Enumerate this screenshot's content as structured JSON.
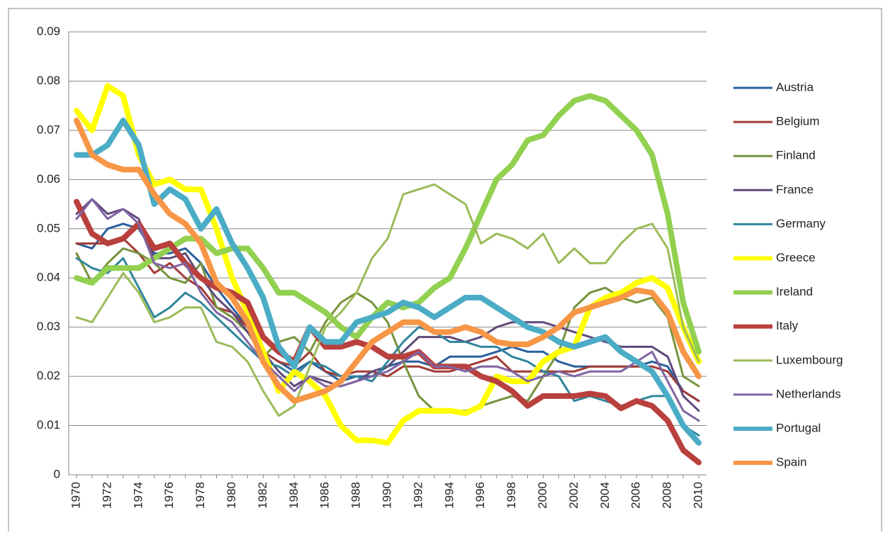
{
  "chart_data": {
    "type": "line",
    "categories": [
      "1970",
      null,
      "1972",
      null,
      "1974",
      null,
      "1976",
      null,
      "1978",
      null,
      "1980",
      null,
      "1982",
      null,
      "1984",
      null,
      "1986",
      null,
      "1988",
      null,
      "1990",
      null,
      "1992",
      null,
      "1994",
      null,
      "1996",
      null,
      "1998",
      null,
      "2000",
      null,
      "2002",
      null,
      "2004",
      null,
      "2006",
      null,
      "2008",
      null,
      "2010"
    ],
    "ylim": [
      0,
      0.09
    ],
    "yticks": [
      0,
      0.01,
      0.02,
      0.03,
      0.04,
      0.05,
      0.06,
      0.07,
      0.08,
      0.09
    ],
    "grid": true,
    "legend": "right",
    "series": [
      {
        "name": "Austria",
        "color": "#2a5f9e",
        "line_width": 3,
        "values": [
          0.047,
          0.046,
          0.05,
          0.051,
          0.05,
          0.045,
          0.045,
          0.046,
          0.043,
          0.038,
          0.034,
          0.03,
          0.025,
          0.023,
          0.021,
          0.023,
          0.021,
          0.019,
          0.02,
          0.02,
          0.022,
          0.023,
          0.023,
          0.022,
          0.024,
          0.024,
          0.024,
          0.025,
          0.026,
          0.025,
          0.025,
          0.023,
          0.022,
          0.022,
          0.022,
          0.022,
          0.022,
          0.023,
          0.022,
          0.017,
          0.015
        ]
      },
      {
        "name": "Belgium",
        "color": "#a33a36",
        "line_width": 3,
        "values": [
          0.047,
          0.047,
          0.047,
          0.048,
          0.045,
          0.041,
          0.043,
          0.04,
          0.038,
          0.034,
          0.033,
          0.03,
          0.025,
          0.023,
          0.022,
          0.025,
          0.021,
          0.02,
          0.021,
          0.021,
          0.02,
          0.022,
          0.022,
          0.021,
          0.021,
          0.022,
          0.023,
          0.024,
          0.021,
          0.021,
          0.021,
          0.021,
          0.021,
          0.022,
          0.022,
          0.022,
          0.022,
          0.022,
          0.021,
          0.017,
          0.015
        ]
      },
      {
        "name": "Finland",
        "color": "#77933c",
        "line_width": 3,
        "values": [
          0.045,
          0.039,
          0.043,
          0.046,
          0.045,
          0.043,
          0.04,
          0.039,
          0.043,
          0.034,
          0.032,
          0.029,
          0.024,
          0.027,
          0.028,
          0.025,
          0.031,
          0.035,
          0.037,
          0.035,
          0.031,
          0.023,
          0.016,
          0.013,
          0.013,
          0.013,
          0.014,
          0.015,
          0.016,
          0.015,
          0.02,
          0.025,
          0.034,
          0.037,
          0.038,
          0.036,
          0.035,
          0.036,
          0.032,
          0.02,
          0.018
        ]
      },
      {
        "name": "France",
        "color": "#604a7b",
        "line_width": 3,
        "values": [
          0.053,
          0.056,
          0.053,
          0.054,
          0.052,
          0.044,
          0.044,
          0.045,
          0.04,
          0.036,
          0.033,
          0.029,
          0.025,
          0.021,
          0.018,
          0.02,
          0.019,
          0.018,
          0.019,
          0.021,
          0.022,
          0.025,
          0.028,
          0.028,
          0.028,
          0.027,
          0.028,
          0.03,
          0.031,
          0.031,
          0.031,
          0.03,
          0.029,
          0.028,
          0.027,
          0.026,
          0.026,
          0.026,
          0.024,
          0.016,
          0.013
        ]
      },
      {
        "name": "Germany",
        "color": "#31859c",
        "line_width": 3,
        "values": [
          0.044,
          0.042,
          0.041,
          0.044,
          0.038,
          0.032,
          0.034,
          0.037,
          0.035,
          0.032,
          0.029,
          0.026,
          0.023,
          0.022,
          0.02,
          0.023,
          0.022,
          0.02,
          0.02,
          0.019,
          0.023,
          0.027,
          0.03,
          0.029,
          0.027,
          0.027,
          0.026,
          0.026,
          0.024,
          0.023,
          0.021,
          0.02,
          0.015,
          0.016,
          0.015,
          0.014,
          0.015,
          0.016,
          0.016,
          0.01,
          0.008
        ]
      },
      {
        "name": "Greece",
        "color": "#ffff00",
        "line_width": 8,
        "values": [
          0.074,
          0.07,
          0.079,
          0.077,
          0.065,
          0.059,
          0.06,
          0.058,
          0.058,
          0.05,
          0.04,
          0.033,
          0.025,
          0.017,
          0.021,
          0.019,
          0.016,
          0.01,
          0.007,
          0.007,
          0.0065,
          0.011,
          0.013,
          0.013,
          0.013,
          0.0125,
          0.014,
          0.02,
          0.019,
          0.019,
          0.023,
          0.025,
          0.026,
          0.034,
          0.036,
          0.037,
          0.039,
          0.04,
          0.038,
          0.03,
          0.023
        ]
      },
      {
        "name": "Ireland",
        "color": "#92d050",
        "line_width": 8,
        "values": [
          0.04,
          0.039,
          0.042,
          0.042,
          0.042,
          0.044,
          0.046,
          0.048,
          0.048,
          0.045,
          0.046,
          0.046,
          0.042,
          0.037,
          0.037,
          0.035,
          0.033,
          0.03,
          0.028,
          0.032,
          0.035,
          0.034,
          0.035,
          0.038,
          0.04,
          0.046,
          0.053,
          0.06,
          0.063,
          0.068,
          0.069,
          0.073,
          0.076,
          0.077,
          0.076,
          0.073,
          0.07,
          0.065,
          0.053,
          0.035,
          0.025
        ]
      },
      {
        "name": "Italy",
        "color": "#b9403d",
        "line_width": 8,
        "values": [
          0.0555,
          0.049,
          0.047,
          0.048,
          0.051,
          0.046,
          0.047,
          0.043,
          0.04,
          0.038,
          0.037,
          0.035,
          0.028,
          0.025,
          0.023,
          0.03,
          0.026,
          0.026,
          0.027,
          0.026,
          0.024,
          0.024,
          0.025,
          0.022,
          0.022,
          0.022,
          0.02,
          0.019,
          0.017,
          0.014,
          0.016,
          0.016,
          0.016,
          0.0165,
          0.016,
          0.0135,
          0.015,
          0.014,
          0.011,
          0.005,
          0.0025
        ]
      },
      {
        "name": "Luxembourg",
        "color": "#9bbb59",
        "line_width": 3,
        "values": [
          0.032,
          0.031,
          0.036,
          0.041,
          0.037,
          0.031,
          0.032,
          0.034,
          0.034,
          0.027,
          0.026,
          0.023,
          0.017,
          0.012,
          0.014,
          0.022,
          0.03,
          0.033,
          0.037,
          0.044,
          0.048,
          0.057,
          0.058,
          0.059,
          0.057,
          0.055,
          0.047,
          0.049,
          0.048,
          0.046,
          0.049,
          0.043,
          0.046,
          0.043,
          0.043,
          0.047,
          0.05,
          0.051,
          0.046,
          0.03,
          0.023
        ]
      },
      {
        "name": "Netherlands",
        "color": "#8064a2",
        "line_width": 3,
        "values": [
          0.052,
          0.056,
          0.052,
          0.054,
          0.051,
          0.043,
          0.042,
          0.043,
          0.037,
          0.033,
          0.031,
          0.027,
          0.023,
          0.02,
          0.017,
          0.02,
          0.018,
          0.018,
          0.019,
          0.02,
          0.021,
          0.023,
          0.025,
          0.022,
          0.022,
          0.021,
          0.022,
          0.022,
          0.021,
          0.019,
          0.02,
          0.021,
          0.02,
          0.021,
          0.021,
          0.021,
          0.023,
          0.025,
          0.019,
          0.013,
          0.011
        ]
      },
      {
        "name": "Portugal",
        "color": "#4bacc6",
        "line_width": 8,
        "values": [
          0.065,
          0.065,
          0.067,
          0.072,
          0.067,
          0.055,
          0.058,
          0.056,
          0.05,
          0.054,
          0.047,
          0.042,
          0.036,
          0.026,
          0.022,
          0.03,
          0.027,
          0.027,
          0.031,
          0.032,
          0.033,
          0.035,
          0.034,
          0.032,
          0.034,
          0.036,
          0.036,
          0.034,
          0.032,
          0.03,
          0.029,
          0.027,
          0.026,
          0.027,
          0.028,
          0.025,
          0.023,
          0.021,
          0.016,
          0.01,
          0.0065
        ]
      },
      {
        "name": "Spain",
        "color": "#f79646",
        "line_width": 8,
        "values": [
          0.072,
          0.065,
          0.063,
          0.062,
          0.062,
          0.057,
          0.053,
          0.051,
          0.047,
          0.039,
          0.036,
          0.031,
          0.023,
          0.018,
          0.015,
          0.016,
          0.017,
          0.019,
          0.023,
          0.027,
          0.029,
          0.031,
          0.031,
          0.029,
          0.029,
          0.03,
          0.029,
          0.027,
          0.0265,
          0.0265,
          0.028,
          0.03,
          0.033,
          0.034,
          0.035,
          0.036,
          0.0375,
          0.037,
          0.033,
          0.025,
          0.02
        ]
      }
    ]
  }
}
